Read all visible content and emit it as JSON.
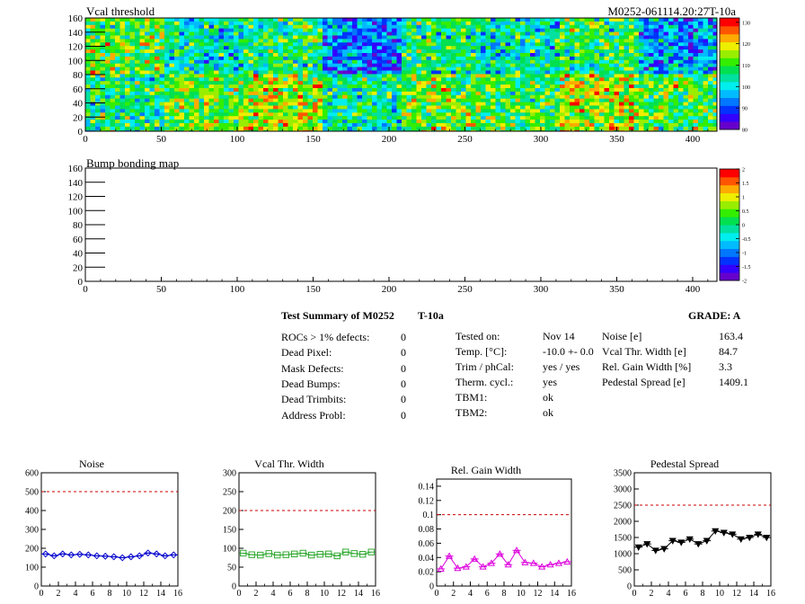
{
  "chart_data": [
    {
      "type": "heatmap",
      "title": "Vcal threshold",
      "module_label": "M0252-061114.20:27T-10a",
      "xlim": [
        0,
        416
      ],
      "ylim": [
        0,
        160
      ],
      "xticks": [
        "0",
        "50",
        "100",
        "150",
        "200",
        "250",
        "300",
        "350",
        "400"
      ],
      "yticks": [
        "0",
        "20",
        "40",
        "60",
        "80",
        "100",
        "120",
        "140",
        "160"
      ],
      "zlim": [
        80,
        132
      ],
      "zticks": [
        "80",
        "90",
        "100",
        "110",
        "120",
        "130"
      ],
      "roc_mean_upper": [
        112,
        102,
        107,
        93,
        106,
        102,
        108,
        96
      ],
      "roc_mean_lower": [
        106,
        112,
        116,
        104,
        113,
        110,
        116,
        111
      ]
    },
    {
      "type": "heatmap",
      "title": "Bump bonding map",
      "xlim": [
        0,
        416
      ],
      "ylim": [
        0,
        160
      ],
      "xticks": [
        "0",
        "50",
        "100",
        "150",
        "200",
        "250",
        "300",
        "350",
        "400"
      ],
      "yticks": [
        "0",
        "20",
        "40",
        "60",
        "80",
        "100",
        "120",
        "140",
        "160"
      ],
      "zlim": [
        -2,
        2
      ],
      "zticks": [
        "-2",
        "-1.5",
        "-1",
        "-0.5",
        "0",
        "0.5",
        "1",
        "1.5",
        "2"
      ]
    },
    {
      "type": "line",
      "title": "Noise",
      "x": [
        0,
        1,
        2,
        3,
        4,
        5,
        6,
        7,
        8,
        9,
        10,
        11,
        12,
        13,
        14,
        15
      ],
      "values": [
        170,
        160,
        170,
        165,
        168,
        165,
        160,
        158,
        155,
        150,
        155,
        160,
        175,
        170,
        160,
        165
      ],
      "limit": 500,
      "xlim": [
        0,
        16
      ],
      "ylim": [
        0,
        600
      ],
      "xticks": [
        "0",
        "2",
        "4",
        "6",
        "8",
        "10",
        "12",
        "14",
        "16"
      ],
      "yticks": [
        "0",
        "100",
        "200",
        "300",
        "400",
        "500",
        "600"
      ],
      "color": "#0000cc",
      "marker": "diamond"
    },
    {
      "type": "line",
      "title": "Vcal Thr. Width",
      "x": [
        0,
        1,
        2,
        3,
        4,
        5,
        6,
        7,
        8,
        9,
        10,
        11,
        12,
        13,
        14,
        15
      ],
      "values": [
        87,
        83,
        82,
        86,
        82,
        83,
        85,
        87,
        82,
        84,
        85,
        80,
        90,
        86,
        84,
        90
      ],
      "limit": 200,
      "xlim": [
        0,
        16
      ],
      "ylim": [
        0,
        300
      ],
      "xticks": [
        "0",
        "2",
        "4",
        "6",
        "8",
        "10",
        "12",
        "14",
        "16"
      ],
      "yticks": [
        "0",
        "50",
        "100",
        "150",
        "200",
        "250",
        "300"
      ],
      "color": "#33aa33",
      "marker": "square"
    },
    {
      "type": "line",
      "title": "Rel. Gain Width",
      "x": [
        0,
        1,
        2,
        3,
        4,
        5,
        6,
        7,
        8,
        9,
        10,
        11,
        12,
        13,
        14,
        15
      ],
      "values": [
        0.024,
        0.042,
        0.025,
        0.027,
        0.038,
        0.027,
        0.032,
        0.045,
        0.03,
        0.05,
        0.033,
        0.032,
        0.027,
        0.03,
        0.032,
        0.034
      ],
      "limit": 0.1,
      "xlim": [
        0,
        16
      ],
      "ylim": [
        0,
        0.15
      ],
      "xticks": [
        "0",
        "2",
        "4",
        "6",
        "8",
        "10",
        "12",
        "14",
        "16"
      ],
      "yticks": [
        "0",
        "0.02",
        "0.04",
        "0.06",
        "0.08",
        "0.1",
        "0.12",
        "0.14"
      ],
      "color": "#dd00dd",
      "marker": "triangle"
    },
    {
      "type": "line",
      "title": "Pedestal Spread",
      "x": [
        0,
        1,
        2,
        3,
        4,
        5,
        6,
        7,
        8,
        9,
        10,
        11,
        12,
        13,
        14,
        15
      ],
      "values": [
        1200,
        1300,
        1100,
        1150,
        1400,
        1350,
        1450,
        1300,
        1400,
        1700,
        1650,
        1600,
        1450,
        1500,
        1600,
        1500
      ],
      "limit": 2500,
      "xlim": [
        0,
        16
      ],
      "ylim": [
        0,
        3500
      ],
      "xticks": [
        "0",
        "2",
        "4",
        "6",
        "8",
        "10",
        "12",
        "14",
        "16"
      ],
      "yticks": [
        "0",
        "500",
        "1000",
        "1500",
        "2000",
        "2500",
        "3000",
        "3500"
      ],
      "color": "#000000",
      "marker": "triangle-down"
    }
  ],
  "summary": {
    "title": "Test Summary of M0252",
    "tag": "T-10a",
    "grade": "GRADE:  A",
    "defects": [
      {
        "label": "ROCs > 1% defects:",
        "value": "0"
      },
      {
        "label": "Dead Pixel:",
        "value": "0"
      },
      {
        "label": "Mask Defects:",
        "value": "0"
      },
      {
        "label": "Dead Bumps:",
        "value": "0"
      },
      {
        "label": "Dead Trimbits:",
        "value": "0"
      },
      {
        "label": "Address Probl:",
        "value": "0"
      }
    ],
    "conditions": [
      {
        "label": "Tested on:",
        "value": "Nov 14"
      },
      {
        "label": "Temp. [°C]:",
        "value": "-10.0 +- 0.0"
      },
      {
        "label": "Trim / phCal:",
        "value": "yes / yes"
      },
      {
        "label": "Therm. cycl.:",
        "value": "yes"
      },
      {
        "label": "TBM1:",
        "value": "ok"
      },
      {
        "label": "TBM2:",
        "value": "ok"
      }
    ],
    "results": [
      {
        "label": "Noise [e]",
        "value": "163.4"
      },
      {
        "label": "Vcal Thr. Width [e]",
        "value": "84.7"
      },
      {
        "label": "Rel. Gain Width [%]",
        "value": "3.3"
      },
      {
        "label": "Pedestal Spread [e]",
        "value": "1409.1"
      }
    ]
  }
}
